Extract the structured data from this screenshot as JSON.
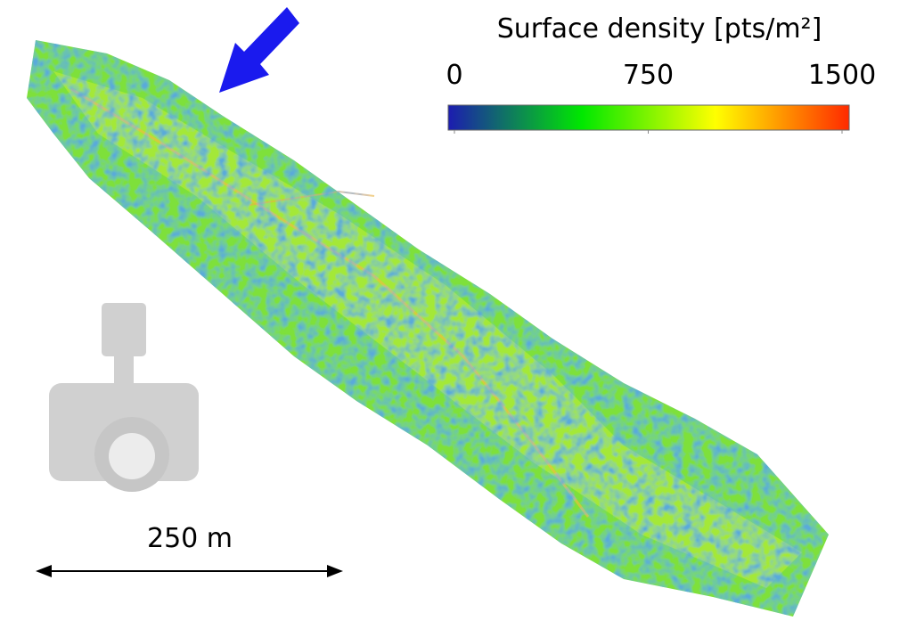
{
  "colorbar": {
    "title": "Surface density [pts/m²]",
    "ticks": [
      0,
      750,
      1500
    ],
    "clim": [
      0,
      1500
    ],
    "colors": [
      "#1c1cb0",
      "#00e800",
      "#ffff00",
      "#ff2a00"
    ]
  },
  "scale_bar": {
    "label": "250 m"
  }
}
